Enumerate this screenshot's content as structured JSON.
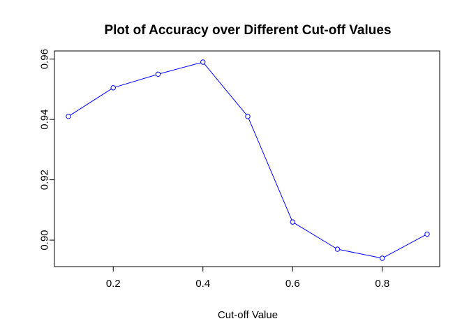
{
  "chart_data": {
    "type": "line",
    "title": "Plot of Accuracy over Different Cut-off Values",
    "xlabel": "Cut-off Value",
    "ylabel": "",
    "x": [
      0.1,
      0.2,
      0.3,
      0.4,
      0.5,
      0.6,
      0.7,
      0.8,
      0.9
    ],
    "series": [
      {
        "values": [
          0.941,
          0.9505,
          0.955,
          0.959,
          0.941,
          0.906,
          0.897,
          0.894,
          0.902
        ]
      }
    ],
    "xlim": [
      0.1,
      0.9
    ],
    "ylim": [
      0.894,
      0.959
    ],
    "x_ticks": [
      0.2,
      0.4,
      0.6,
      0.8
    ],
    "x_tick_labels": [
      "0.2",
      "0.4",
      "0.6",
      "0.8"
    ],
    "y_ticks": [
      0.9,
      0.92,
      0.94,
      0.96
    ],
    "y_tick_labels": [
      "0.90",
      "0.92",
      "0.94",
      "0.96"
    ],
    "grid": false,
    "legend": "none",
    "line_color": "#0000ff",
    "marker": "open-circle"
  }
}
